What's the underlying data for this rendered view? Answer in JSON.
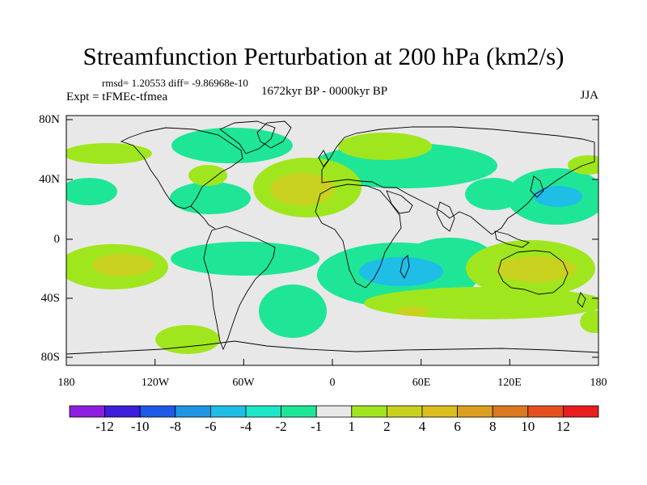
{
  "title": "Streamfunction Perturbation at 200 hPa (km2/s)",
  "rmsd_line": "rmsd= 1.20553 diff= -9.86968e-10",
  "experiment": "Expt = tFMEc-tfmea",
  "period": "1672kyr BP - 0000kyr BP",
  "season": "JJA",
  "y_axis": {
    "ticks": [
      "80N",
      "40N",
      "0",
      "40S",
      "80S"
    ]
  },
  "x_axis": {
    "ticks": [
      "180",
      "120W",
      "60W",
      "0",
      "60E",
      "120E",
      "180"
    ]
  },
  "colorbar": {
    "colors": [
      "#8e1ee0",
      "#3c1edc",
      "#1e5ae6",
      "#1e96e6",
      "#1ebee6",
      "#1ee6c8",
      "#1ee696",
      "#e8e8e8",
      "#a0e61e",
      "#c8d21e",
      "#dcbe1e",
      "#dca01e",
      "#dc781e",
      "#e6501e",
      "#e61e1e"
    ],
    "labels": [
      "-12",
      "-10",
      "-8",
      "-6",
      "-4",
      "-2",
      "-1",
      "1",
      "2",
      "4",
      "6",
      "8",
      "10",
      "12"
    ]
  },
  "map_colors": {
    "ocean": "#e8e8e8",
    "coast": "#000000"
  }
}
